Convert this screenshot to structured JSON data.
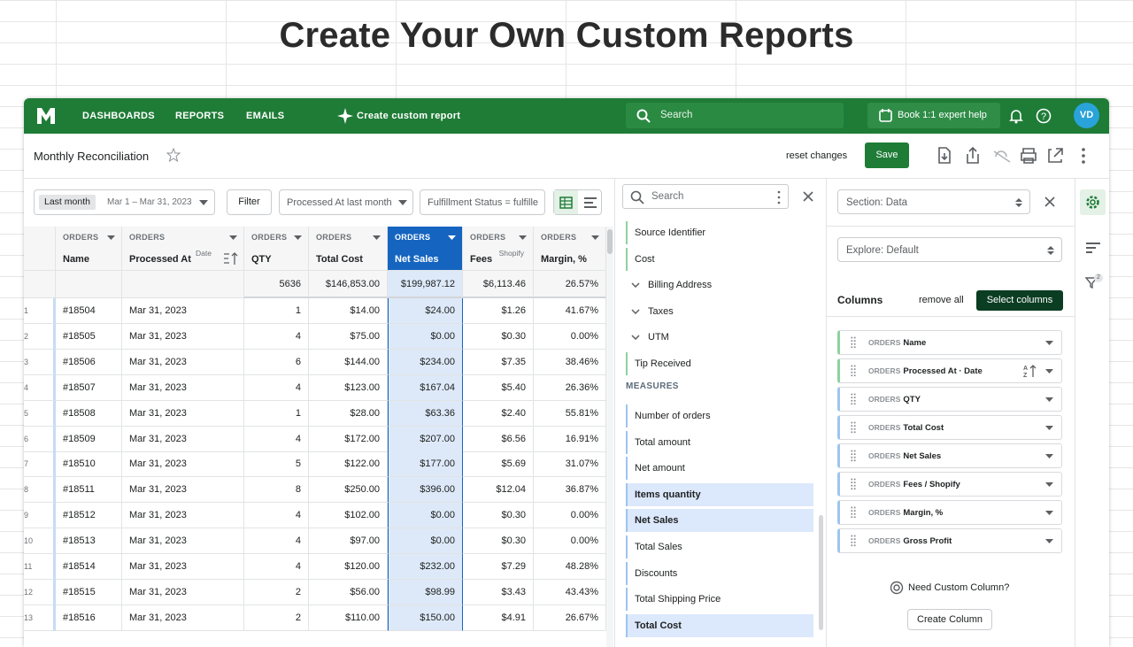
{
  "headline": "Create Your Own Custom Reports",
  "nav": {
    "items": [
      "DASHBOARDS",
      "REPORTS",
      "EMAILS"
    ],
    "create": "Create custom report",
    "search": "Search",
    "help": "Book 1:1 expert help",
    "avatar": "VD"
  },
  "toolbar": {
    "title": "Monthly Reconciliation",
    "reset": "reset changes",
    "save": "Save"
  },
  "filters": {
    "period": "Last month",
    "range": "Mar 1 – Mar 31, 2023",
    "filter": "Filter",
    "processed": "Processed At last month",
    "fulfillment": "Fulfillment Status = fulfille"
  },
  "table": {
    "columns": [
      {
        "group": "ORDERS",
        "name": "Name"
      },
      {
        "group": "ORDERS",
        "name": "Processed At",
        "sub": "Date"
      },
      {
        "group": "ORDERS",
        "name": "QTY"
      },
      {
        "group": "ORDERS",
        "name": "Total Cost"
      },
      {
        "group": "ORDERS",
        "name": "Net Sales",
        "active": true
      },
      {
        "group": "ORDERS",
        "name": "Fees",
        "sub": "Shopify"
      },
      {
        "group": "ORDERS",
        "name": "Margin, %"
      }
    ],
    "totals": [
      "5636",
      "$146,853.00",
      "$199,987.12",
      "$6,113.46",
      "26.57%"
    ],
    "rows": [
      [
        "1",
        "#18504",
        "Mar 31, 2023",
        "1",
        "$14.00",
        "$24.00",
        "$1.26",
        "41.67%"
      ],
      [
        "2",
        "#18505",
        "Mar 31, 2023",
        "4",
        "$75.00",
        "$0.00",
        "$0.30",
        "0.00%"
      ],
      [
        "3",
        "#18506",
        "Mar 31, 2023",
        "6",
        "$144.00",
        "$234.00",
        "$7.35",
        "38.46%"
      ],
      [
        "4",
        "#18507",
        "Mar 31, 2023",
        "4",
        "$123.00",
        "$167.04",
        "$5.40",
        "26.36%"
      ],
      [
        "5",
        "#18508",
        "Mar 31, 2023",
        "1",
        "$28.00",
        "$63.36",
        "$2.40",
        "55.81%"
      ],
      [
        "6",
        "#18509",
        "Mar 31, 2023",
        "4",
        "$172.00",
        "$207.00",
        "$6.56",
        "16.91%"
      ],
      [
        "7",
        "#18510",
        "Mar 31, 2023",
        "5",
        "$122.00",
        "$177.00",
        "$5.69",
        "31.07%"
      ],
      [
        "8",
        "#18511",
        "Mar 31, 2023",
        "8",
        "$250.00",
        "$396.00",
        "$12.04",
        "36.87%"
      ],
      [
        "9",
        "#18512",
        "Mar 31, 2023",
        "4",
        "$102.00",
        "$0.00",
        "$0.30",
        "0.00%"
      ],
      [
        "10",
        "#18513",
        "Mar 31, 2023",
        "4",
        "$97.00",
        "$0.00",
        "$0.30",
        "0.00%"
      ],
      [
        "11",
        "#18514",
        "Mar 31, 2023",
        "4",
        "$120.00",
        "$232.00",
        "$7.29",
        "48.28%"
      ],
      [
        "12",
        "#18515",
        "Mar 31, 2023",
        "2",
        "$56.00",
        "$98.99",
        "$3.43",
        "43.43%"
      ],
      [
        "13",
        "#18516",
        "Mar 31, 2023",
        "2",
        "$110.00",
        "$150.00",
        "$4.91",
        "26.67%"
      ]
    ]
  },
  "fields": {
    "search": "Search",
    "dimensions": [
      {
        "label": "Source Identifier"
      },
      {
        "label": "Cost"
      },
      {
        "label": "Billing Address",
        "expandable": true
      },
      {
        "label": "Taxes",
        "expandable": true
      },
      {
        "label": "UTM",
        "expandable": true
      },
      {
        "label": "Tip Received"
      }
    ],
    "measures_title": "MEASURES",
    "measures": [
      {
        "label": "Number of orders"
      },
      {
        "label": "Total amount"
      },
      {
        "label": "Net amount"
      },
      {
        "label": "Items quantity",
        "selected": true
      },
      {
        "label": "Net Sales",
        "selected": true
      },
      {
        "label": "Total Sales"
      },
      {
        "label": "Discounts"
      },
      {
        "label": "Total Shipping Price"
      },
      {
        "label": "Total Cost",
        "selected": true
      }
    ]
  },
  "settings": {
    "section": "Section: Data",
    "explore": "Explore: Default",
    "columns_title": "Columns",
    "remove_all": "remove all",
    "select_columns": "Select columns",
    "columns": [
      {
        "group": "ORDERS",
        "name": "Name",
        "kind": "dimension"
      },
      {
        "group": "ORDERS",
        "name": "Processed At · Date",
        "kind": "dimension",
        "sorted": true
      },
      {
        "group": "ORDERS",
        "name": "QTY",
        "kind": "measure"
      },
      {
        "group": "ORDERS",
        "name": "Total Cost",
        "kind": "measure"
      },
      {
        "group": "ORDERS",
        "name": "Net Sales",
        "kind": "measure"
      },
      {
        "group": "ORDERS",
        "name": "Fees / Shopify",
        "kind": "measure"
      },
      {
        "group": "ORDERS",
        "name": "Margin, %",
        "kind": "measure"
      },
      {
        "group": "ORDERS",
        "name": "Gross Profit",
        "kind": "measure"
      }
    ],
    "custom": "Need Custom Column?",
    "create": "Create Column",
    "filter_count": "2"
  }
}
